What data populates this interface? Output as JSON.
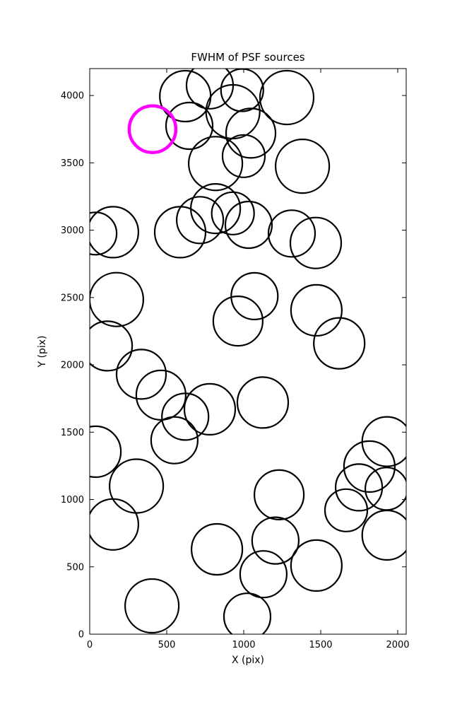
{
  "chart_data": {
    "type": "scatter",
    "title": "FWHM of PSF sources",
    "xlabel": "X (pix)",
    "ylabel": "Y (pix)",
    "xlim": [
      0,
      2055
    ],
    "ylim": [
      0,
      4200
    ],
    "xticks": [
      0,
      500,
      1000,
      1500,
      2000
    ],
    "yticks": [
      0,
      500,
      1000,
      1500,
      2000,
      2500,
      3000,
      3500,
      4000
    ],
    "grid": false,
    "legend": null,
    "colors": {
      "marker": "#000000",
      "highlight": "#ff00ff",
      "axes": "#000000",
      "background": "#ffffff"
    },
    "marker": {
      "fill": "none",
      "stroke_width": 2.2,
      "highlight_stroke_width": 4.5,
      "radius_units": "screen_px"
    },
    "sources": [
      {
        "x": 620,
        "y": 3995,
        "r": 36
      },
      {
        "x": 780,
        "y": 4075,
        "r": 33
      },
      {
        "x": 647,
        "y": 3775,
        "r": 33
      },
      {
        "x": 930,
        "y": 3880,
        "r": 38
      },
      {
        "x": 990,
        "y": 4040,
        "r": 30
      },
      {
        "x": 1280,
        "y": 3985,
        "r": 38
      },
      {
        "x": 1046,
        "y": 3720,
        "r": 35
      },
      {
        "x": 408,
        "y": 3750,
        "r": 33,
        "highlight": true
      },
      {
        "x": 817,
        "y": 3495,
        "r": 38
      },
      {
        "x": 1000,
        "y": 3550,
        "r": 30
      },
      {
        "x": 1381,
        "y": 3475,
        "r": 38
      },
      {
        "x": 817,
        "y": 3160,
        "r": 35
      },
      {
        "x": 930,
        "y": 3125,
        "r": 30
      },
      {
        "x": 716,
        "y": 3075,
        "r": 33
      },
      {
        "x": 1032,
        "y": 3040,
        "r": 33
      },
      {
        "x": 587,
        "y": 2985,
        "r": 36
      },
      {
        "x": 151,
        "y": 2985,
        "r": 36
      },
      {
        "x": 37,
        "y": 2975,
        "r": 30
      },
      {
        "x": 1312,
        "y": 2975,
        "r": 33
      },
      {
        "x": 1468,
        "y": 2905,
        "r": 36
      },
      {
        "x": 174,
        "y": 2485,
        "r": 38
      },
      {
        "x": 1070,
        "y": 2510,
        "r": 33
      },
      {
        "x": 963,
        "y": 2325,
        "r": 35
      },
      {
        "x": 1472,
        "y": 2405,
        "r": 36
      },
      {
        "x": 1620,
        "y": 2160,
        "r": 36
      },
      {
        "x": 115,
        "y": 2140,
        "r": 35
      },
      {
        "x": 335,
        "y": 1930,
        "r": 35
      },
      {
        "x": 463,
        "y": 1775,
        "r": 35
      },
      {
        "x": 620,
        "y": 1615,
        "r": 33
      },
      {
        "x": 780,
        "y": 1670,
        "r": 36
      },
      {
        "x": 1124,
        "y": 1720,
        "r": 36
      },
      {
        "x": 550,
        "y": 1440,
        "r": 33
      },
      {
        "x": 37,
        "y": 1355,
        "r": 36
      },
      {
        "x": 303,
        "y": 1100,
        "r": 38
      },
      {
        "x": 1930,
        "y": 1430,
        "r": 35
      },
      {
        "x": 1816,
        "y": 1245,
        "r": 36
      },
      {
        "x": 1748,
        "y": 1090,
        "r": 33
      },
      {
        "x": 1927,
        "y": 1080,
        "r": 30
      },
      {
        "x": 1230,
        "y": 1035,
        "r": 35
      },
      {
        "x": 1665,
        "y": 920,
        "r": 30
      },
      {
        "x": 1930,
        "y": 735,
        "r": 35
      },
      {
        "x": 151,
        "y": 815,
        "r": 36
      },
      {
        "x": 826,
        "y": 630,
        "r": 36
      },
      {
        "x": 1206,
        "y": 695,
        "r": 33
      },
      {
        "x": 1128,
        "y": 445,
        "r": 33
      },
      {
        "x": 1472,
        "y": 510,
        "r": 36
      },
      {
        "x": 404,
        "y": 210,
        "r": 38
      },
      {
        "x": 1023,
        "y": 130,
        "r": 33
      }
    ]
  }
}
